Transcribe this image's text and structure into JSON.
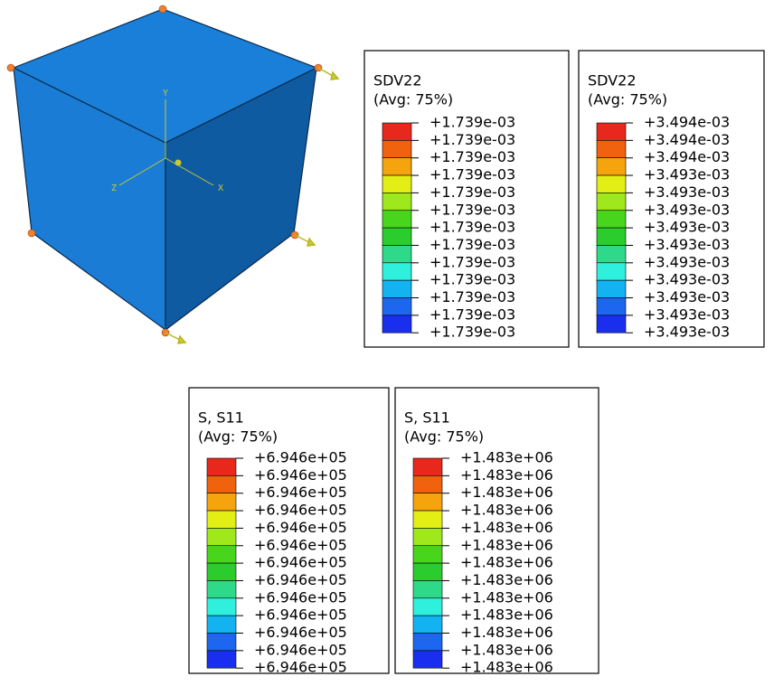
{
  "triad": {
    "y": "Y",
    "z": "Z",
    "x": "X"
  },
  "legends": [
    {
      "title": "SDV22",
      "subtitle": "(Avg: 75%)",
      "labels": [
        "+1.739e-03",
        "+1.739e-03",
        "+1.739e-03",
        "+1.739e-03",
        "+1.739e-03",
        "+1.739e-03",
        "+1.739e-03",
        "+1.739e-03",
        "+1.739e-03",
        "+1.739e-03",
        "+1.739e-03",
        "+1.739e-03",
        "+1.739e-03"
      ]
    },
    {
      "title": "SDV22",
      "subtitle": "(Avg: 75%)",
      "labels": [
        "+3.494e-03",
        "+3.494e-03",
        "+3.494e-03",
        "+3.493e-03",
        "+3.493e-03",
        "+3.493e-03",
        "+3.493e-03",
        "+3.493e-03",
        "+3.493e-03",
        "+3.493e-03",
        "+3.493e-03",
        "+3.493e-03",
        "+3.493e-03"
      ]
    },
    {
      "title": "S, S11",
      "subtitle": "(Avg: 75%)",
      "labels": [
        "+6.946e+05",
        "+6.946e+05",
        "+6.946e+05",
        "+6.946e+05",
        "+6.946e+05",
        "+6.946e+05",
        "+6.946e+05",
        "+6.946e+05",
        "+6.946e+05",
        "+6.946e+05",
        "+6.946e+05",
        "+6.946e+05",
        "+6.946e+05"
      ]
    },
    {
      "title": "S, S11",
      "subtitle": "(Avg: 75%)",
      "labels": [
        "+1.483e+06",
        "+1.483e+06",
        "+1.483e+06",
        "+1.483e+06",
        "+1.483e+06",
        "+1.483e+06",
        "+1.483e+06",
        "+1.483e+06",
        "+1.483e+06",
        "+1.483e+06",
        "+1.483e+06",
        "+1.483e+06",
        "+1.483e+06"
      ]
    }
  ]
}
